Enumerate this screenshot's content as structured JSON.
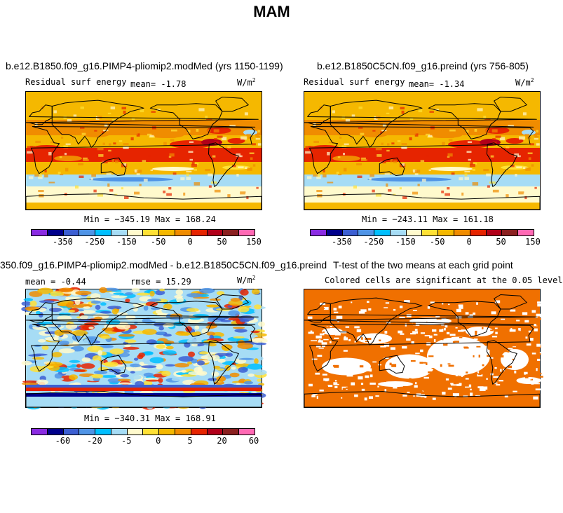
{
  "page": {
    "title": "MAM"
  },
  "panels": {
    "p1": {
      "title": "b.e12.B1850.f09_g16.PIMP4-pliomip2.modMed (yrs 1150-1199)",
      "variable": "Residual surf energy",
      "mean_text": "mean=  -1.78",
      "units": "W/m",
      "units_exp": "2",
      "minmax": "Min = −345.19  Max = 168.24"
    },
    "p2": {
      "title": "b.e12.B1850C5CN.f09_g16.preind (yrs 756-805)",
      "variable": "Residual surf energy",
      "mean_text": "mean=  -1.34",
      "units": "W/m",
      "units_exp": "2",
      "minmax": "Min = −243.11  Max = 161.18"
    },
    "p3": {
      "title": "350.f09_g16.PIMP4-pliomip2.modMed - b.e12.B1850C5CN.f09_g16.preind",
      "mean_text": "mean =  -0.44",
      "rmse_text": "rmse =  15.29",
      "units": "W/m",
      "units_exp": "2",
      "minmax": "Min = −340.31  Max = 168.91"
    },
    "p4": {
      "title": "T-test of the two means at each grid point",
      "subtitle": "Colored cells are significant at the 0.05 level"
    }
  },
  "colorbars": {
    "abs": {
      "colors": [
        "#8a2be2",
        "#00008b",
        "#3c5fd2",
        "#4f94e6",
        "#00bfff",
        "#a6dcf5",
        "#fffacd",
        "#ffe135",
        "#f5b800",
        "#f08c00",
        "#e62400",
        "#b2001a",
        "#8b2020",
        "#ff69b4"
      ],
      "labels": [
        "-350",
        "-250",
        "-150",
        "-50",
        "0",
        "50",
        "150"
      ]
    },
    "diff": {
      "colors": [
        "#8a2be2",
        "#00008b",
        "#3c5fd2",
        "#4f94e6",
        "#00bfff",
        "#a6dcf5",
        "#fffacd",
        "#ffe135",
        "#f5b800",
        "#f08c00",
        "#e62400",
        "#b2001a",
        "#8b2020",
        "#ff69b4"
      ],
      "labels": [
        "-60",
        "-20",
        "-5",
        "0",
        "5",
        "20",
        "60"
      ]
    }
  },
  "chart_data": [
    {
      "type": "heatmap",
      "title": "b.e12.B1850.f09_g16.PIMP4-pliomip2.modMed (yrs 1150-1199)",
      "variable": "Residual surf energy",
      "units": "W/m2",
      "mean": -1.78,
      "min": -345.19,
      "max": 168.24,
      "colorbar_ticks": [
        -350,
        -250,
        -150,
        -50,
        0,
        50,
        150
      ]
    },
    {
      "type": "heatmap",
      "title": "b.e12.B1850C5CN.f09_g16.preind (yrs 756-805)",
      "variable": "Residual surf energy",
      "units": "W/m2",
      "mean": -1.34,
      "min": -243.11,
      "max": 161.18,
      "colorbar_ticks": [
        -350,
        -250,
        -150,
        -50,
        0,
        50,
        150
      ]
    },
    {
      "type": "heatmap",
      "title": "350.f09_g16.PIMP4-pliomip2.modMed - b.e12.B1850C5CN.f09_g16.preind",
      "units": "W/m2",
      "mean": -0.44,
      "rmse": 15.29,
      "min": -340.31,
      "max": 168.91,
      "colorbar_ticks": [
        -60,
        -20,
        -5,
        0,
        5,
        20,
        60
      ]
    },
    {
      "type": "heatmap",
      "title": "T-test of the two means at each grid point",
      "subtitle": "Colored cells are significant at the 0.05 level",
      "significance_level": 0.05
    }
  ]
}
